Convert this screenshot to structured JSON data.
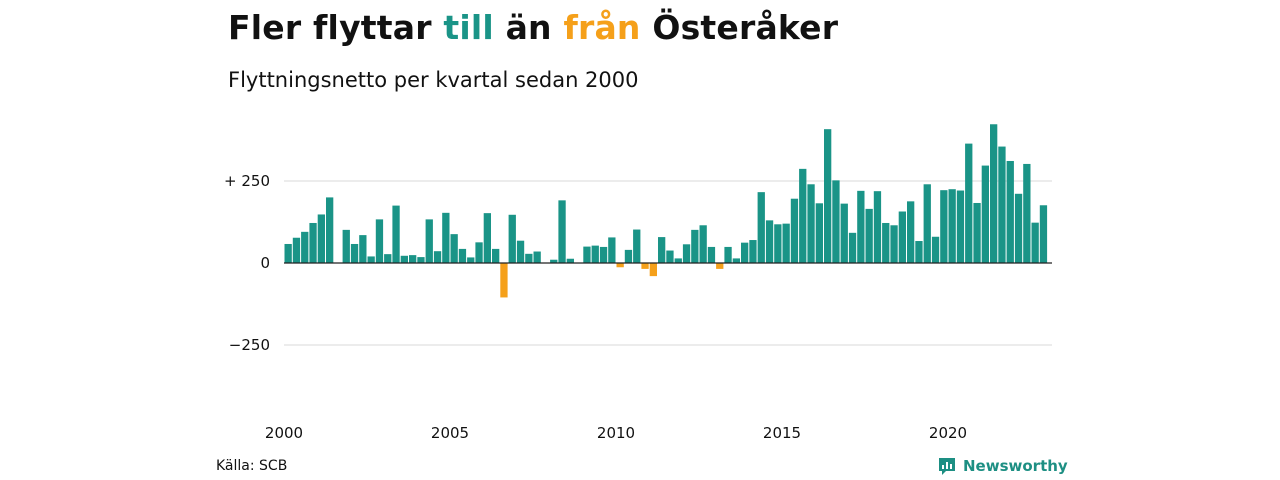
{
  "title": {
    "part1": "Fler flyttar ",
    "word_to": "till",
    "part2": " än ",
    "word_from": "från",
    "part3": " Österåker"
  },
  "subtitle": "Flyttningsnetto per kvartal sedan 2000",
  "source": "Källa: SCB",
  "brand": {
    "name": "Newsworthy",
    "icon": "newsworthy-logo-icon"
  },
  "colors": {
    "positive": "#1a9487",
    "negative": "#f5a01a",
    "text": "#111111",
    "grid": "#d9d9d9",
    "baseline": "#222222",
    "brand": "#1d8f83"
  },
  "chart_data": {
    "type": "bar",
    "x_start": "2000Q1",
    "ylim": [
      -400,
      460
    ],
    "y_ticks": [
      250,
      0,
      -250
    ],
    "y_tick_labels": [
      "+ 250",
      "0",
      "−250"
    ],
    "x_ticks": [
      "2000",
      "2005",
      "2010",
      "2015",
      "2020"
    ],
    "values": [
      58,
      77,
      95,
      122,
      148,
      200,
      0,
      101,
      58,
      85,
      20,
      133,
      27,
      175,
      22,
      24,
      18,
      133,
      36,
      153,
      88,
      43,
      17,
      63,
      152,
      43,
      -105,
      147,
      68,
      28,
      35,
      0,
      10,
      191,
      13,
      0,
      50,
      53,
      49,
      78,
      -13,
      40,
      102,
      -18,
      -40,
      79,
      38,
      14,
      57,
      101,
      115,
      49,
      -18,
      49,
      14,
      62,
      70,
      216,
      130,
      118,
      120,
      196,
      287,
      240,
      182,
      408,
      252,
      181,
      92,
      220,
      165,
      219,
      122,
      115,
      157,
      188,
      67,
      240,
      80,
      222,
      225,
      221,
      364,
      183,
      297,
      423,
      355,
      311,
      211,
      302,
      123,
      176
    ]
  }
}
